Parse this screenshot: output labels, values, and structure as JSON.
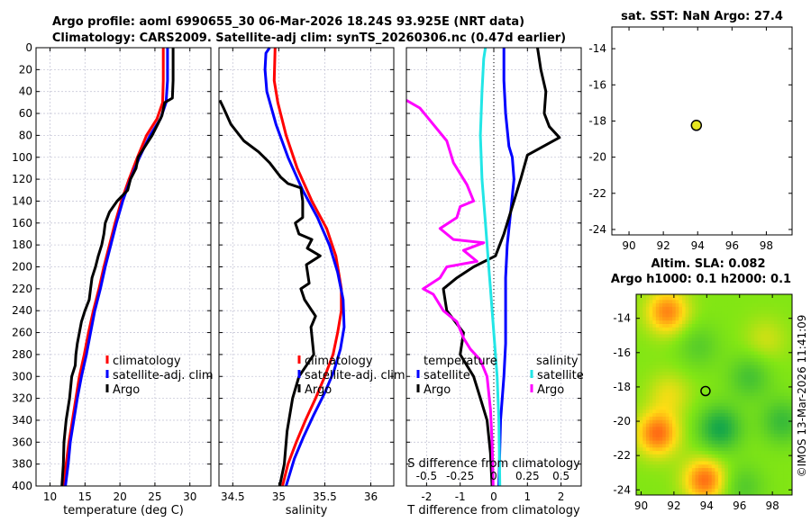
{
  "title": {
    "line1": "Argo profile: aoml 6990655_30 06-Mar-2026 18.24S 93.925E (NRT data)",
    "line2": "Climatology: CARS2009. Satellite-adj clim: synTS_20260306.nc (0.47d earlier)"
  },
  "copyright": "©IMOS 13-Mar-2026 11:41:09",
  "colors": {
    "climatology": "#ff0000",
    "satellite": "#0000ff",
    "argo": "#000000",
    "sat_diff_S": "#22e6e6",
    "argo_diff_S": "#ff00ff",
    "grid": "#c8c8d8",
    "marker": "#e6e620"
  },
  "chart_data": [
    {
      "id": "temperature",
      "type": "line",
      "xlabel": "temperature (deg C)",
      "ylim": [
        0,
        400
      ],
      "xlim": [
        8,
        33
      ],
      "xticks": [
        10,
        15,
        20,
        25,
        30
      ],
      "yticks": [
        0,
        20,
        40,
        60,
        80,
        100,
        120,
        140,
        160,
        180,
        200,
        220,
        240,
        260,
        280,
        300,
        320,
        340,
        360,
        380,
        400
      ],
      "legend": [
        "climatology",
        "satellite-adj. clim",
        "Argo"
      ],
      "series": [
        {
          "name": "climatology",
          "color": "red",
          "points": [
            [
              26.2,
              0
            ],
            [
              26.2,
              30
            ],
            [
              26.1,
              50
            ],
            [
              25.3,
              65
            ],
            [
              23.8,
              80
            ],
            [
              22.5,
              100
            ],
            [
              21.3,
              120
            ],
            [
              20.2,
              140
            ],
            [
              19.3,
              160
            ],
            [
              18.5,
              180
            ],
            [
              17.7,
              200
            ],
            [
              17.0,
              220
            ],
            [
              16.2,
              240
            ],
            [
              15.5,
              260
            ],
            [
              14.9,
              280
            ],
            [
              14.2,
              300
            ],
            [
              13.7,
              320
            ],
            [
              13.2,
              340
            ],
            [
              12.7,
              360
            ],
            [
              12.3,
              380
            ],
            [
              11.9,
              400
            ]
          ]
        },
        {
          "name": "satellite-adj. clim",
          "color": "blue",
          "points": [
            [
              26.8,
              0
            ],
            [
              26.8,
              30
            ],
            [
              26.6,
              50
            ],
            [
              25.8,
              65
            ],
            [
              24.3,
              80
            ],
            [
              22.8,
              100
            ],
            [
              21.5,
              120
            ],
            [
              20.4,
              140
            ],
            [
              19.5,
              160
            ],
            [
              18.7,
              180
            ],
            [
              17.9,
              200
            ],
            [
              17.2,
              220
            ],
            [
              16.4,
              240
            ],
            [
              15.8,
              260
            ],
            [
              15.2,
              280
            ],
            [
              14.5,
              300
            ],
            [
              13.9,
              320
            ],
            [
              13.4,
              340
            ],
            [
              12.9,
              360
            ],
            [
              12.6,
              380
            ],
            [
              12.2,
              400
            ]
          ]
        },
        {
          "name": "Argo",
          "color": "black",
          "points": [
            [
              27.6,
              0
            ],
            [
              27.6,
              30
            ],
            [
              27.5,
              46
            ],
            [
              26.4,
              50
            ],
            [
              26.0,
              62
            ],
            [
              25.4,
              70
            ],
            [
              24.6,
              80
            ],
            [
              23.4,
              92
            ],
            [
              22.6,
              100
            ],
            [
              22.3,
              110
            ],
            [
              21.5,
              120
            ],
            [
              21.1,
              130
            ],
            [
              19.6,
              140
            ],
            [
              18.5,
              150
            ],
            [
              17.9,
              160
            ],
            [
              17.7,
              170
            ],
            [
              17.4,
              180
            ],
            [
              16.9,
              190
            ],
            [
              16.5,
              200
            ],
            [
              16.0,
              210
            ],
            [
              15.8,
              220
            ],
            [
              15.6,
              230
            ],
            [
              15.0,
              240
            ],
            [
              14.5,
              250
            ],
            [
              14.2,
              260
            ],
            [
              13.9,
              270
            ],
            [
              13.7,
              280
            ],
            [
              13.6,
              290
            ],
            [
              13.1,
              300
            ],
            [
              12.8,
              320
            ],
            [
              12.3,
              340
            ],
            [
              12.0,
              360
            ],
            [
              11.9,
              380
            ],
            [
              11.7,
              400
            ]
          ]
        }
      ]
    },
    {
      "id": "salinity",
      "type": "line",
      "xlabel": "salinity",
      "ylim": [
        0,
        400
      ],
      "xlim": [
        34.35,
        36.25
      ],
      "xticks": [
        34.5,
        35,
        35.5,
        36
      ],
      "legend": [
        "climatology",
        "satellite-adj. clim",
        "Argo"
      ],
      "series": [
        {
          "name": "climatology",
          "color": "red",
          "points": [
            [
              34.96,
              0
            ],
            [
              34.95,
              30
            ],
            [
              34.99,
              50
            ],
            [
              35.08,
              80
            ],
            [
              35.2,
              110
            ],
            [
              35.36,
              140
            ],
            [
              35.52,
              165
            ],
            [
              35.62,
              190
            ],
            [
              35.68,
              220
            ],
            [
              35.68,
              240
            ],
            [
              35.64,
              260
            ],
            [
              35.59,
              280
            ],
            [
              35.5,
              300
            ],
            [
              35.4,
              320
            ],
            [
              35.29,
              340
            ],
            [
              35.19,
              360
            ],
            [
              35.1,
              380
            ],
            [
              35.04,
              400
            ]
          ]
        },
        {
          "name": "satellite-adj. clim",
          "color": "blue",
          "points": [
            [
              34.9,
              0
            ],
            [
              34.86,
              5
            ],
            [
              34.85,
              20
            ],
            [
              34.87,
              40
            ],
            [
              34.97,
              70
            ],
            [
              35.1,
              100
            ],
            [
              35.26,
              130
            ],
            [
              35.42,
              155
            ],
            [
              35.55,
              180
            ],
            [
              35.64,
              205
            ],
            [
              35.7,
              230
            ],
            [
              35.71,
              255
            ],
            [
              35.67,
              275
            ],
            [
              35.6,
              295
            ],
            [
              35.5,
              315
            ],
            [
              35.38,
              335
            ],
            [
              35.27,
              355
            ],
            [
              35.17,
              375
            ],
            [
              35.08,
              400
            ]
          ]
        },
        {
          "name": "Argo",
          "color": "black",
          "points": [
            [
              34.36,
              48
            ],
            [
              34.4,
              55
            ],
            [
              34.48,
              70
            ],
            [
              34.62,
              85
            ],
            [
              34.78,
              95
            ],
            [
              34.9,
              105
            ],
            [
              35.02,
              118
            ],
            [
              35.1,
              124
            ],
            [
              35.24,
              128
            ],
            [
              35.26,
              140
            ],
            [
              35.26,
              155
            ],
            [
              35.18,
              160
            ],
            [
              35.22,
              170
            ],
            [
              35.36,
              175
            ],
            [
              35.31,
              183
            ],
            [
              35.45,
              190
            ],
            [
              35.3,
              198
            ],
            [
              35.33,
              215
            ],
            [
              35.24,
              220
            ],
            [
              35.28,
              230
            ],
            [
              35.4,
              245
            ],
            [
              35.35,
              255
            ],
            [
              35.38,
              280
            ],
            [
              35.22,
              300
            ],
            [
              35.15,
              320
            ],
            [
              35.09,
              350
            ],
            [
              35.06,
              380
            ],
            [
              35.01,
              400
            ]
          ]
        }
      ]
    },
    {
      "id": "difference",
      "type": "line",
      "xlabel": "T difference from climatology",
      "top_xlabel": "S difference from climatology",
      "ylim": [
        0,
        400
      ],
      "xlim": [
        -2.6,
        2.6
      ],
      "xticks_T": [
        -2,
        -1,
        0,
        1,
        2
      ],
      "xticks_S_labels": [
        "-0.5",
        "-0.25",
        "0",
        "0.25",
        "0.5"
      ],
      "legend_titles": [
        "temperature",
        "salinity"
      ],
      "legend": [
        "satellite",
        "Argo",
        "satellite",
        "Argo"
      ],
      "series": [
        {
          "name": "satellite (T)",
          "color": "blue",
          "points": [
            [
              0.3,
              0
            ],
            [
              0.3,
              30
            ],
            [
              0.35,
              60
            ],
            [
              0.45,
              90
            ],
            [
              0.55,
              100
            ],
            [
              0.6,
              120
            ],
            [
              0.5,
              150
            ],
            [
              0.4,
              180
            ],
            [
              0.35,
              210
            ],
            [
              0.35,
              240
            ],
            [
              0.35,
              270
            ],
            [
              0.3,
              300
            ],
            [
              0.2,
              340
            ],
            [
              0.15,
              400
            ]
          ]
        },
        {
          "name": "Argo (T)",
          "color": "black",
          "points": [
            [
              1.3,
              0
            ],
            [
              1.4,
              20
            ],
            [
              1.55,
              40
            ],
            [
              1.5,
              60
            ],
            [
              1.65,
              72
            ],
            [
              1.95,
              82
            ],
            [
              1.0,
              98
            ],
            [
              0.8,
              120
            ],
            [
              0.6,
              140
            ],
            [
              0.3,
              170
            ],
            [
              0.05,
              190
            ],
            [
              -0.6,
              200
            ],
            [
              -1.1,
              210
            ],
            [
              -1.5,
              220
            ],
            [
              -1.4,
              240
            ],
            [
              -0.9,
              260
            ],
            [
              -1.0,
              280
            ],
            [
              -0.6,
              300
            ],
            [
              -0.4,
              320
            ],
            [
              -0.2,
              340
            ],
            [
              -0.1,
              370
            ],
            [
              -0.05,
              400
            ]
          ]
        },
        {
          "name": "satellite (S)",
          "color": "cyan",
          "points": [
            [
              -0.25,
              0
            ],
            [
              -0.3,
              10
            ],
            [
              -0.35,
              40
            ],
            [
              -0.4,
              80
            ],
            [
              -0.35,
              120
            ],
            [
              -0.25,
              160
            ],
            [
              -0.15,
              200
            ],
            [
              -0.1,
              220
            ],
            [
              0.0,
              260
            ],
            [
              0.1,
              300
            ],
            [
              0.15,
              340
            ],
            [
              0.18,
              400
            ]
          ]
        },
        {
          "name": "Argo (S)",
          "color": "magenta",
          "points": [
            [
              -2.6,
              48
            ],
            [
              -2.2,
              55
            ],
            [
              -1.8,
              70
            ],
            [
              -1.4,
              85
            ],
            [
              -1.2,
              105
            ],
            [
              -0.8,
              125
            ],
            [
              -0.6,
              140
            ],
            [
              -1.0,
              145
            ],
            [
              -1.1,
              155
            ],
            [
              -1.6,
              165
            ],
            [
              -1.2,
              175
            ],
            [
              -0.3,
              178
            ],
            [
              -0.9,
              185
            ],
            [
              -0.5,
              195
            ],
            [
              -1.4,
              200
            ],
            [
              -1.6,
              210
            ],
            [
              -2.1,
              220
            ],
            [
              -1.8,
              225
            ],
            [
              -1.5,
              240
            ],
            [
              -1.1,
              250
            ],
            [
              -0.9,
              265
            ],
            [
              -0.7,
              275
            ],
            [
              -0.4,
              285
            ],
            [
              -0.2,
              300
            ],
            [
              -0.1,
              330
            ],
            [
              -0.05,
              360
            ],
            [
              -0.02,
              400
            ]
          ]
        }
      ]
    },
    {
      "id": "sst_map",
      "type": "scatter",
      "title": "sat. SST: NaN Argo: 27.4",
      "xlim": [
        89,
        99.5
      ],
      "ylim": [
        -24.3,
        -12.8
      ],
      "xticks": [
        90,
        92,
        94,
        96,
        98
      ],
      "yticks": [
        -14,
        -16,
        -18,
        -20,
        -22,
        -24
      ],
      "points": [
        {
          "x": 93.925,
          "y": -18.24
        }
      ]
    },
    {
      "id": "sla_map",
      "type": "heatmap",
      "title1": "Altim. SLA: 0.082",
      "title2": "Argo h1000: 0.1 h2000: 0.1",
      "xlim": [
        89.7,
        99.2
      ],
      "ylim": [
        -24.3,
        -12.6
      ],
      "xticks": [
        90,
        92,
        94,
        96,
        98
      ],
      "yticks": [
        -14,
        -16,
        -18,
        -20,
        -22,
        -24
      ],
      "points": [
        {
          "x": 93.925,
          "y": -18.24
        }
      ],
      "blobs": [
        {
          "x": 91.6,
          "y": -13.6,
          "v": 0.9
        },
        {
          "x": 91.0,
          "y": -20.7,
          "v": 1.0
        },
        {
          "x": 93.9,
          "y": -23.4,
          "v": 1.0
        },
        {
          "x": 91.7,
          "y": -18.4,
          "v": 0.4
        },
        {
          "x": 94.8,
          "y": -20.4,
          "v": -0.9
        },
        {
          "x": 98.6,
          "y": -20.0,
          "v": -0.6
        },
        {
          "x": 96.6,
          "y": -17.4,
          "v": -0.5
        },
        {
          "x": 93.5,
          "y": -15.6,
          "v": -0.35
        },
        {
          "x": 97.6,
          "y": -15.2,
          "v": 0.3
        },
        {
          "x": 96.2,
          "y": -23.8,
          "v": -0.4
        }
      ]
    }
  ]
}
